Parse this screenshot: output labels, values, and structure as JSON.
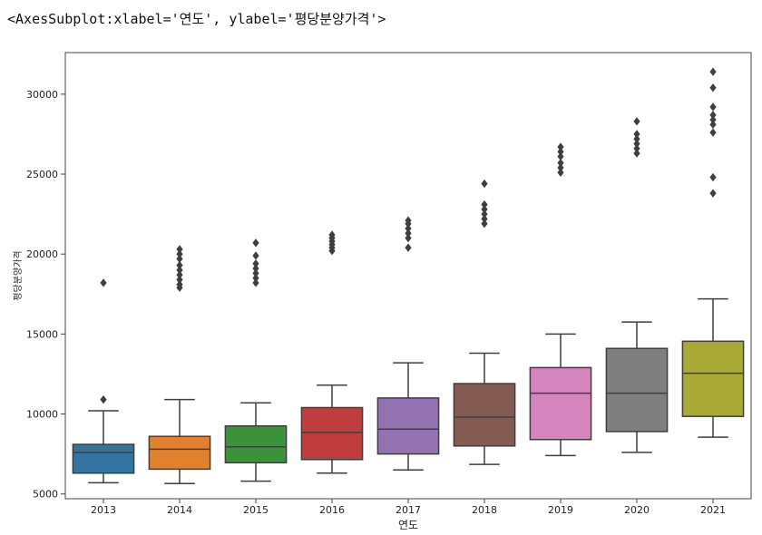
{
  "output_repr": "<AxesSubplot:xlabel='연도', ylabel='평당분양가격'>",
  "chart_data": {
    "type": "box",
    "xlabel": "연도",
    "ylabel": "평당분양가격",
    "ylim": [
      4700,
      32600
    ],
    "yticks": [
      5000,
      10000,
      15000,
      20000,
      25000,
      30000
    ],
    "categories": [
      "2013",
      "2014",
      "2015",
      "2016",
      "2017",
      "2018",
      "2019",
      "2020",
      "2021"
    ],
    "colors": [
      "#3274a1",
      "#e1812c",
      "#3a923a",
      "#c03d3e",
      "#9372b2",
      "#845b53",
      "#d684bd",
      "#7f7f7f",
      "#a9aa35"
    ],
    "boxes": [
      {
        "whislo": 5700,
        "q1": 6300,
        "med": 7600,
        "q3": 8100,
        "whishi": 10200,
        "fliers": [
          10900,
          18200
        ]
      },
      {
        "whislo": 5650,
        "q1": 6550,
        "med": 7800,
        "q3": 8600,
        "whishi": 10900,
        "fliers": [
          17900,
          18100,
          18400,
          18700,
          19000,
          19300,
          19700,
          20000,
          20300
        ]
      },
      {
        "whislo": 5800,
        "q1": 6950,
        "med": 7950,
        "q3": 9250,
        "whishi": 10700,
        "fliers": [
          18200,
          18500,
          18800,
          19100,
          19400,
          19900,
          20700
        ]
      },
      {
        "whislo": 6300,
        "q1": 7150,
        "med": 8850,
        "q3": 10400,
        "whishi": 11800,
        "fliers": [
          20200,
          20400,
          20600,
          20800,
          21000,
          21200
        ]
      },
      {
        "whislo": 6500,
        "q1": 7500,
        "med": 9050,
        "q3": 11000,
        "whishi": 13200,
        "fliers": [
          20400,
          21000,
          21300,
          21600,
          21900,
          22100
        ]
      },
      {
        "whislo": 6850,
        "q1": 8000,
        "med": 9800,
        "q3": 11900,
        "whishi": 13800,
        "fliers": [
          21900,
          22200,
          22500,
          22800,
          23100,
          24400
        ]
      },
      {
        "whislo": 7400,
        "q1": 8400,
        "med": 11300,
        "q3": 12900,
        "whishi": 15000,
        "fliers": [
          25100,
          25400,
          25700,
          26100,
          26400,
          26700
        ]
      },
      {
        "whislo": 7600,
        "q1": 8900,
        "med": 11300,
        "q3": 14100,
        "whishi": 15750,
        "fliers": [
          26300,
          26600,
          26900,
          27200,
          27500,
          28300
        ]
      },
      {
        "whislo": 8550,
        "q1": 9850,
        "med": 12550,
        "q3": 14550,
        "whishi": 17200,
        "fliers": [
          23800,
          24800,
          27600,
          28100,
          28400,
          28700,
          29200,
          30400,
          31400
        ]
      }
    ]
  }
}
